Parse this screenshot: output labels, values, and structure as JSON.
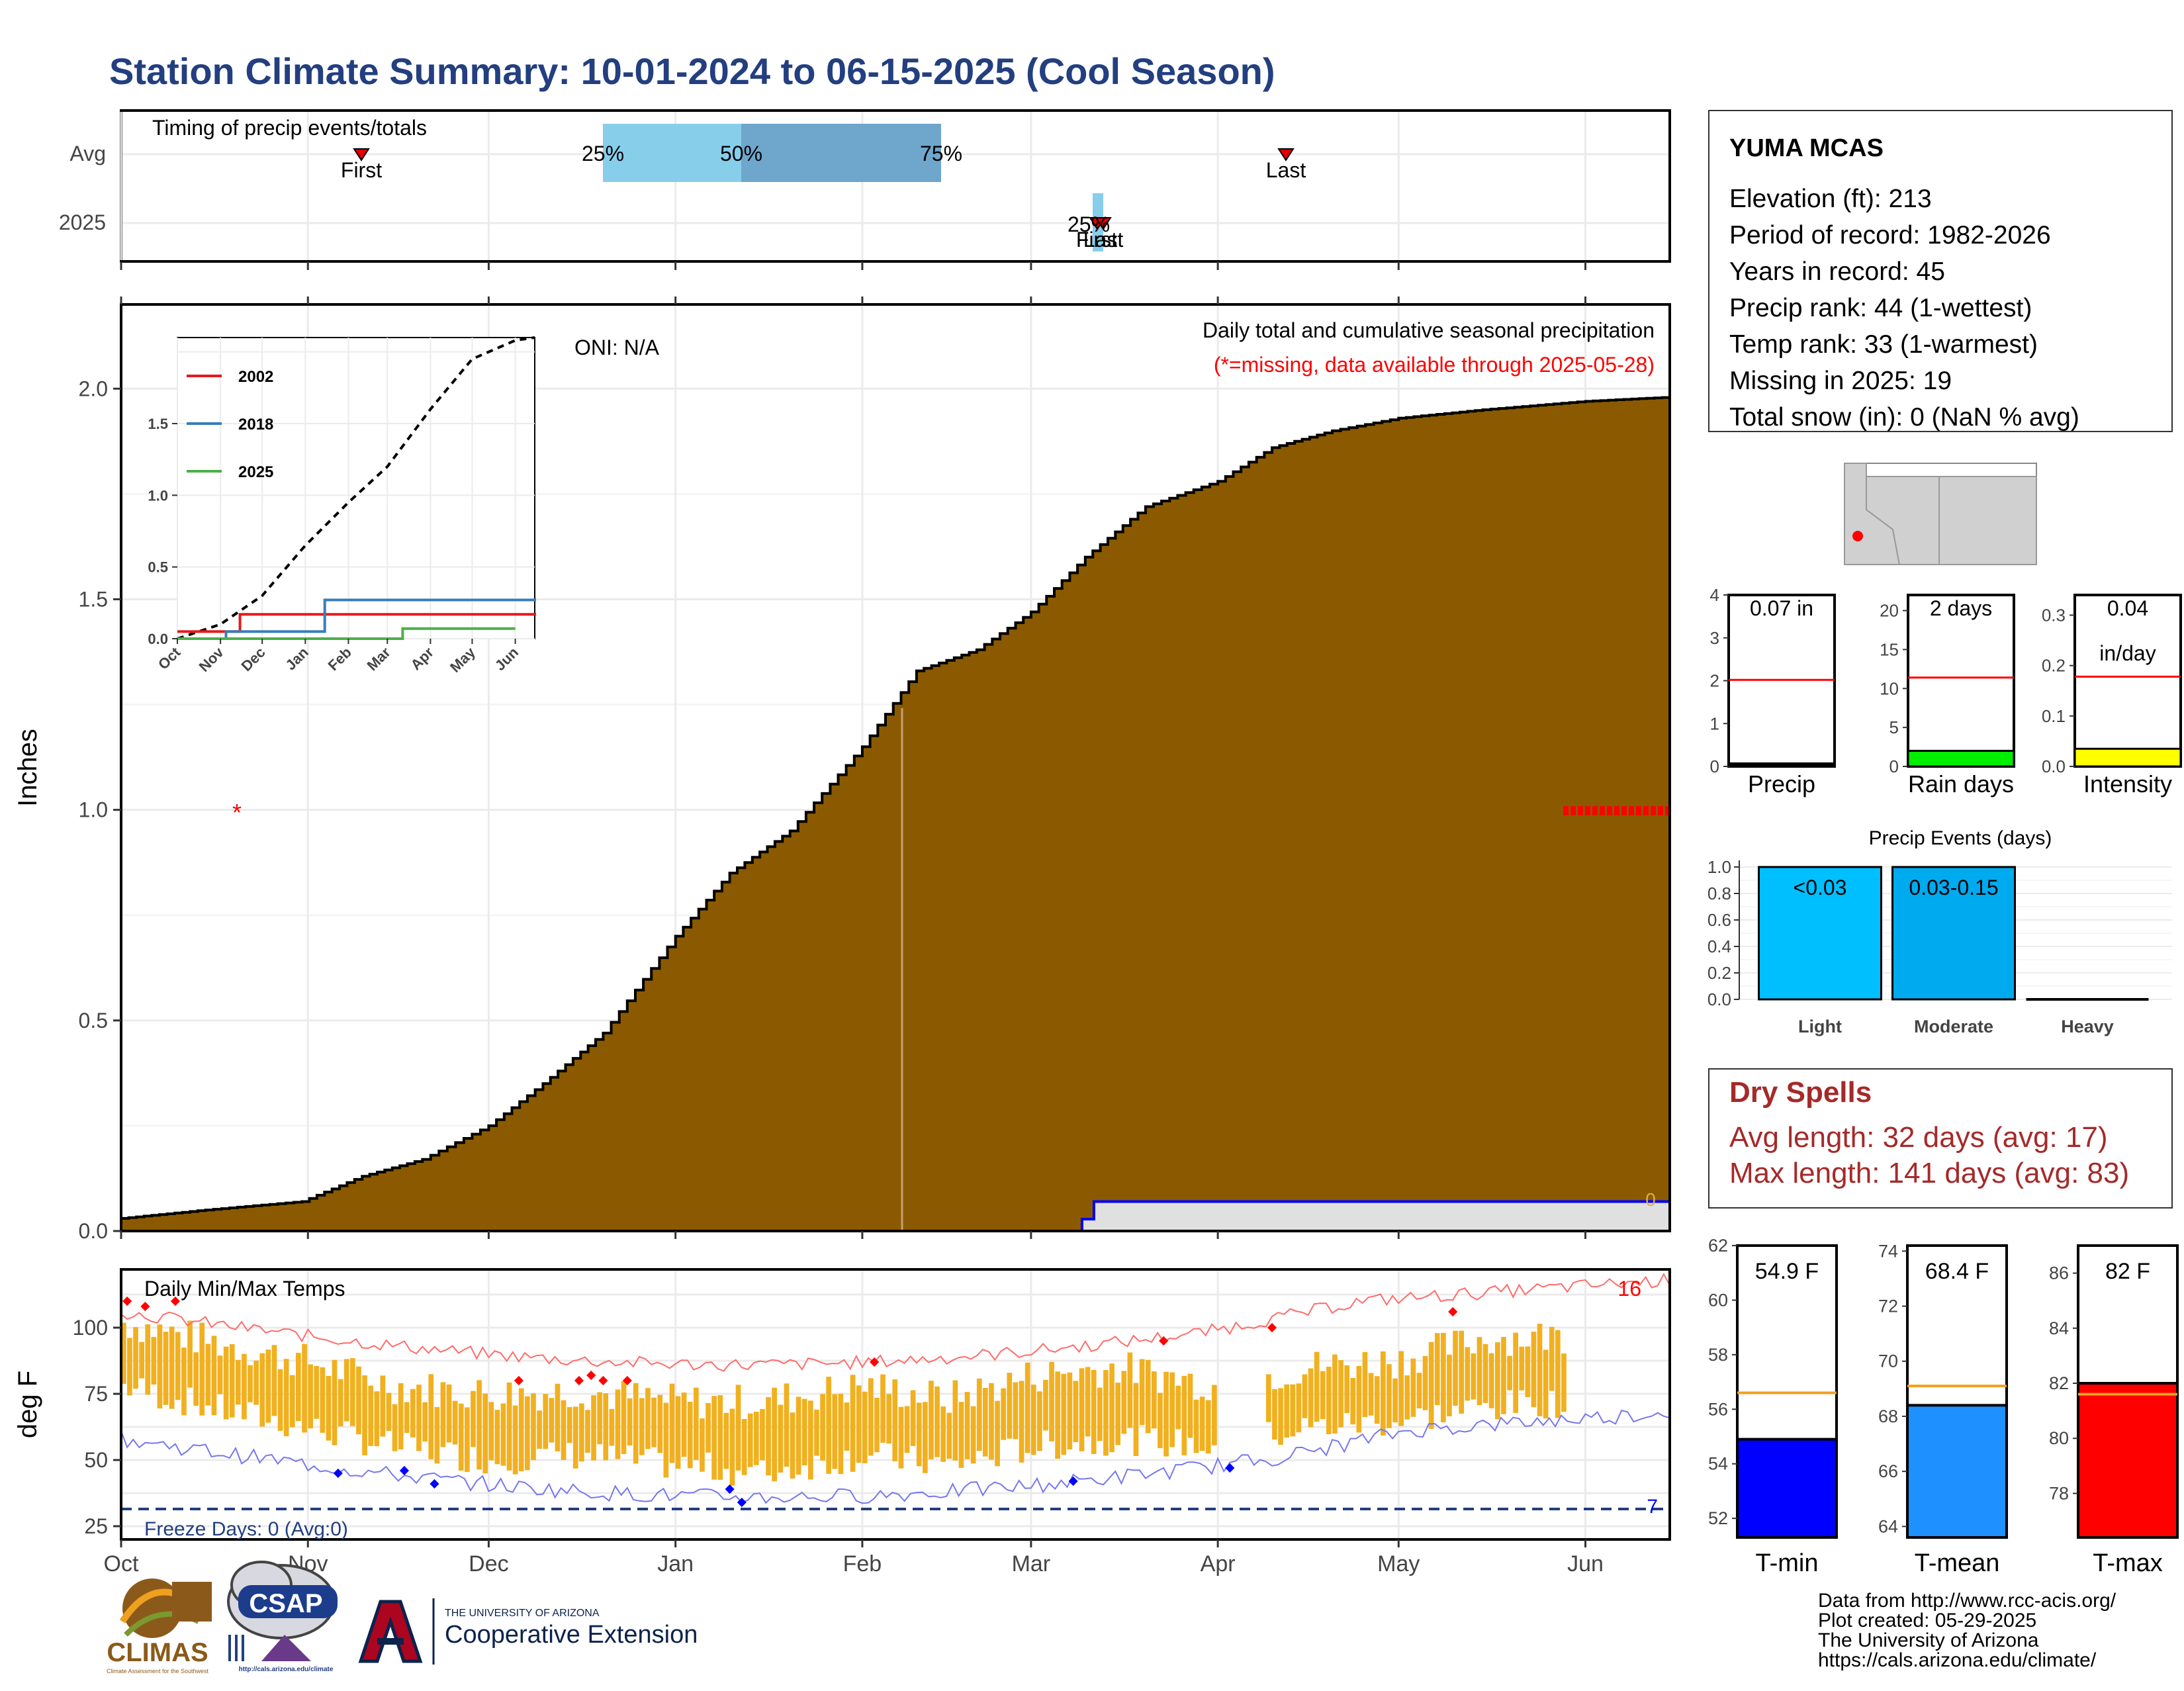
{
  "title": "Station Climate Summary: 10-01-2024 to 06-15-2025 (Cool Season)",
  "colors": {
    "title": "#233f80",
    "cumulative_fill": "#8b5a00",
    "current_fill": "#e0e0e0",
    "current_line": "#0000ff",
    "quartile_light": "#87ceeb",
    "quartile_dark": "#6fa6cc",
    "temp_bar": "#f0b020",
    "tmax_line": "#ff6b6b",
    "tmin_line": "#7777ee",
    "dry_spells": "#a52a2a",
    "light": "#00bfff",
    "moderate": "#00aaee"
  },
  "timing": {
    "label": "Timing of precip events/totals",
    "rows": [
      "Avg",
      "2025"
    ],
    "avg": {
      "first": "First",
      "last": "Last",
      "q25": "25%",
      "q50": "50%",
      "q75": "75%",
      "first_date": "2024-10-26",
      "last_date": "2025-04-12",
      "q25_date": "2024-12-19",
      "q50_date": "2025-01-12",
      "q75_date": "2025-02-14"
    },
    "current": {
      "first": "First",
      "last": "Last",
      "q": "25%",
      "first_date": "2025-03-11",
      "last_date": "2025-03-12"
    }
  },
  "main_chart": {
    "ylabel": "Inches",
    "annotation_title": "Daily total and cumulative seasonal precipitation",
    "annotation_missing": "(*=missing, data available through 2025-05-28)",
    "oni": "ONI: N/A",
    "current_total_label": "0",
    "missing_marker": "*",
    "x_ticks": [
      "Oct",
      "Nov",
      "Dec",
      "Jan",
      "Feb",
      "Mar",
      "Apr",
      "May",
      "Jun"
    ],
    "y_ticks": [
      "0.0",
      "0.5",
      "1.0",
      "1.5",
      "2.0"
    ]
  },
  "inset": {
    "legend": [
      {
        "name": "2002",
        "color": "#e41a1c"
      },
      {
        "name": "2018",
        "color": "#377eb8"
      },
      {
        "name": "2025",
        "color": "#4daf4a"
      }
    ],
    "x_ticks": [
      "Oct",
      "Nov",
      "Dec",
      "Jan",
      "Feb",
      "Mar",
      "Apr",
      "May",
      "Jun"
    ],
    "y_ticks": [
      "0.0",
      "0.5",
      "1.0",
      "1.5"
    ]
  },
  "temp_chart": {
    "ylabel": "deg F",
    "label": "Daily Min/Max Temps",
    "freeze_label": "Freeze Days: 0 (Avg:0)",
    "count_hot": "16",
    "count_cold": "7",
    "y_ticks": [
      "25",
      "50",
      "75",
      "100"
    ],
    "x_ticks": [
      "Oct",
      "Nov",
      "Dec",
      "Jan",
      "Feb",
      "Mar",
      "Apr",
      "May",
      "Jun"
    ]
  },
  "station": {
    "name": "YUMA MCAS",
    "lines": [
      "Elevation (ft): 213",
      "Period of record: 1982-2026",
      "Years in record: 45",
      "Precip rank: 44 (1-wettest)",
      "Temp rank: 33 (1-warmest)",
      "Missing in 2025: 19",
      "Total snow (in): 0 (NaN % avg)"
    ]
  },
  "mini_bars": [
    {
      "label": "Precip",
      "value_text": "0.07 in",
      "value_text2": "",
      "value": 0.07,
      "avg": 2.02,
      "ymax": 4,
      "ticks": [
        "0",
        "1",
        "2",
        "3",
        "4"
      ],
      "color": "#000000"
    },
    {
      "label": "Rain days",
      "value_text": "2 days",
      "value_text2": "",
      "value": 2,
      "avg": 11.4,
      "ymax": 22,
      "ticks": [
        "0",
        "5",
        "10",
        "15",
        "20"
      ],
      "color": "#00ee00"
    },
    {
      "label": "Intensity",
      "value_text": "0.04",
      "value_text2": "in/day",
      "value": 0.035,
      "avg": 0.178,
      "ymax": 0.34,
      "ticks": [
        "0.0",
        "0.1",
        "0.2",
        "0.3"
      ],
      "color": "#ffff00"
    }
  ],
  "precip_events": {
    "title": "Precip Events (days)",
    "categories": [
      "Light",
      "Moderate",
      "Heavy"
    ],
    "bar_labels": [
      "<0.03",
      "0.03-0.15",
      ""
    ],
    "values": [
      1,
      1,
      0
    ],
    "y_ticks": [
      "0.0",
      "0.2",
      "0.4",
      "0.6",
      "0.8",
      "1.0"
    ]
  },
  "dry_spells": {
    "title": "Dry Spells",
    "avg": "Avg length: 32 days (avg: 17)",
    "max": "Max length: 141 days (avg: 83)"
  },
  "temp_bars": [
    {
      "label": "T-min",
      "value_text": "54.9 F",
      "value": 54.9,
      "avg": 56.6,
      "ymin": 51.3,
      "ymax": 62,
      "ticks": [
        "52",
        "54",
        "56",
        "58",
        "60",
        "62"
      ],
      "color": "#0000ff"
    },
    {
      "label": "T-mean",
      "value_text": "68.4 F",
      "value": 68.4,
      "avg": 69.1,
      "ymin": 63.6,
      "ymax": 74.2,
      "ticks": [
        "64",
        "66",
        "68",
        "70",
        "72",
        "74"
      ],
      "color": "#1e90ff"
    },
    {
      "label": "T-max",
      "value_text": "82 F",
      "value": 82.0,
      "avg": 81.6,
      "ymin": 76.4,
      "ymax": 87.0,
      "ticks": [
        "78",
        "80",
        "82",
        "84",
        "86"
      ],
      "color": "#ff0000"
    }
  ],
  "footer": {
    "lines": [
      "Data from http://www.rcc-acis.org/",
      "Plot created: 05-29-2025",
      "The University of Arizona",
      "https://cals.arizona.edu/climate/"
    ],
    "logo_climas": "CLIMAS",
    "logo_climas_sub": "Climate Assessment for the Southwest",
    "logo_csap": "CSAP",
    "logo_csap_url": "http://cals.arizona.edu/climate",
    "logo_ua_top": "THE UNIVERSITY OF ARIZONA",
    "logo_ua_main": "Cooperative Extension"
  },
  "chart_data": [
    {
      "type": "area",
      "title": "Daily total and cumulative seasonal precipitation",
      "ylabel": "Inches",
      "x_range": [
        "2024-10-01",
        "2025-06-15"
      ],
      "ylim": [
        0,
        2.2
      ],
      "series": [
        {
          "name": "",
          "x": [
            "2024-10-01",
            "2024-10-15",
            "2024-10-31",
            "2024-11-10",
            "2024-11-20",
            "2024-12-01",
            "2024-12-10",
            "2024-12-20",
            "2025-01-01",
            "2025-01-10",
            "2025-01-20",
            "2025-02-01",
            "2025-02-10",
            "2025-02-20",
            "2025-03-01",
            "2025-03-10",
            "2025-03-20",
            "2025-04-01",
            "2025-04-10",
            "2025-04-20",
            "2025-05-01",
            "2025-05-15",
            "2025-06-01",
            "2025-06-15"
          ],
          "values": [
            0.03,
            0.05,
            0.07,
            0.13,
            0.17,
            0.25,
            0.35,
            0.47,
            0.7,
            0.85,
            0.95,
            1.15,
            1.33,
            1.38,
            1.47,
            1.6,
            1.72,
            1.78,
            1.86,
            1.9,
            1.93,
            1.95,
            1.97,
            1.98
          ]
        },
        {
          "name": "",
          "x": [
            "2024-10-01",
            "2025-03-11",
            "2025-03-12",
            "2025-06-15"
          ],
          "values": [
            0,
            0,
            0.07,
            0.07
          ]
        }
      ]
    },
    {
      "type": "line",
      "title": "",
      "x_range": [
        "2024-10-01",
        "2025-06-15"
      ],
      "ylim": [
        0,
        2.1
      ],
      "series": [
        {
          "name": "",
          "x": [
            "2024-10-01",
            "2024-11-01",
            "2024-12-01",
            "2025-01-01",
            "2025-02-01",
            "2025-03-01",
            "2025-04-01",
            "2025-05-01",
            "2025-06-01",
            "2025-06-15"
          ],
          "values": [
            0.0,
            0.1,
            0.3,
            0.65,
            0.95,
            1.2,
            1.6,
            1.95,
            2.08,
            2.1
          ]
        },
        {
          "name": "2002",
          "x": [
            "2024-10-01",
            "2024-11-01",
            "2024-11-15",
            "2025-06-15"
          ],
          "values": [
            0.05,
            0.05,
            0.17,
            0.18
          ]
        },
        {
          "name": "2018",
          "x": [
            "2024-10-01",
            "2024-11-05",
            "2025-01-15",
            "2025-06-15"
          ],
          "values": [
            0.0,
            0.05,
            0.27,
            0.28
          ]
        },
        {
          "name": "2025",
          "x": [
            "2024-10-01",
            "2025-03-11",
            "2025-03-12",
            "2025-06-01"
          ],
          "values": [
            0.0,
            0.0,
            0.07,
            0.07
          ]
        }
      ]
    },
    {
      "type": "bar",
      "title": "Daily Min/Max Temps",
      "ylabel": "deg F",
      "ylim": [
        20,
        122
      ],
      "series": [
        {
          "name": "",
          "x": [
            "2024-10-01",
            "2024-10-15",
            "2024-11-01",
            "2024-11-15",
            "2024-12-01",
            "2024-12-15",
            "2025-01-01",
            "2025-01-15",
            "2025-02-01",
            "2025-02-15",
            "2025-03-01",
            "2025-03-15",
            "2025-04-01",
            "2025-04-15",
            "2025-05-01",
            "2025-05-15",
            "2025-05-28"
          ],
          "values": [
            102,
            95,
            87,
            78,
            75,
            76,
            72,
            72,
            78,
            73,
            82,
            85,
            78,
            85,
            88,
            96,
            97
          ]
        },
        {
          "name": "",
          "x": [
            "2024-10-01",
            "2024-10-15",
            "2024-11-01",
            "2024-11-15",
            "2024-12-01",
            "2024-12-15",
            "2025-01-01",
            "2025-01-15",
            "2025-02-01",
            "2025-02-15",
            "2025-03-01",
            "2025-03-15",
            "2025-04-01",
            "2025-04-15",
            "2025-05-01",
            "2025-05-15",
            "2025-05-28"
          ],
          "values": [
            78,
            70,
            62,
            55,
            50,
            52,
            48,
            45,
            52,
            48,
            55,
            58,
            55,
            62,
            65,
            70,
            72
          ]
        }
      ]
    }
  ]
}
